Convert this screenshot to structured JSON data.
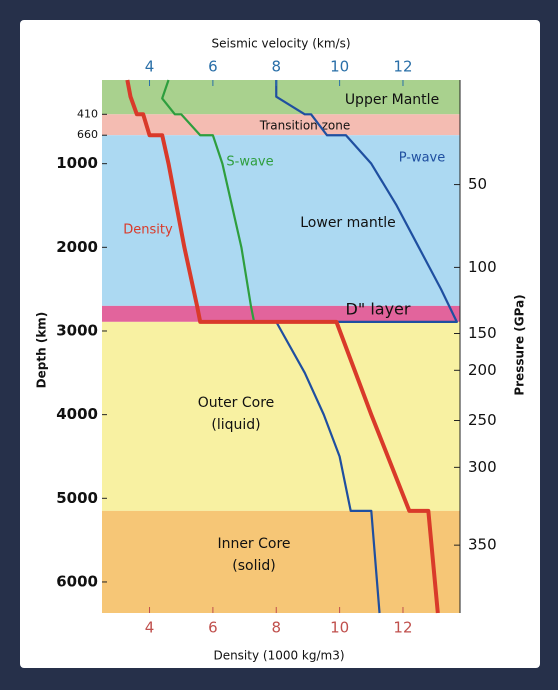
{
  "chart_data": {
    "type": "line",
    "x_label_top": "Seismic velocity (km/s)",
    "x_label_bottom": "Density (1000 kg/m3)",
    "y_label": "Depth (km)",
    "y2_label": "Pressure (GPa)",
    "xlim": [
      2.5,
      13.8
    ],
    "xticks": [
      4,
      6,
      8,
      10,
      12
    ],
    "x2ticks": [
      4,
      6,
      8,
      10,
      12
    ],
    "xtick_color_top": "#2a6fa8",
    "xtick_color_bottom": "#c0504d",
    "ylim": [
      0,
      6371
    ],
    "y_inverted": true,
    "yticks": [
      410,
      660,
      1000,
      2000,
      3000,
      4000,
      5000,
      6000
    ],
    "y2ticks": [
      {
        "value": 50,
        "depth": 1250
      },
      {
        "value": 100,
        "depth": 2240
      },
      {
        "value": 150,
        "depth": 3030
      },
      {
        "value": 200,
        "depth": 3470
      },
      {
        "value": 250,
        "depth": 4070
      },
      {
        "value": 300,
        "depth": 4630
      },
      {
        "value": 350,
        "depth": 5560
      }
    ],
    "layers": [
      {
        "name": [
          "Upper Mantle"
        ],
        "top": 0,
        "bottom": 410,
        "color": "#a9d18e"
      },
      {
        "name": [
          "Transition zone"
        ],
        "top": 410,
        "bottom": 660,
        "color": "#f4bcb2"
      },
      {
        "name": [
          "Lower mantle"
        ],
        "top": 660,
        "bottom": 2700,
        "color": "#acd9f2"
      },
      {
        "name": [
          "D\" layer"
        ],
        "top": 2700,
        "bottom": 2891,
        "color": "#e2649c"
      },
      {
        "name": [
          "Outer Core",
          "(liquid)"
        ],
        "top": 2891,
        "bottom": 5150,
        "color": "#f8f1a2"
      },
      {
        "name": [
          "Inner Core",
          "(solid)"
        ],
        "top": 5150,
        "bottom": 6371,
        "color": "#f6c676"
      }
    ],
    "series": [
      {
        "name": "P-wave",
        "color": "#1f4fa0",
        "axis": "x_top",
        "depth": [
          0,
          200,
          410,
          410,
          660,
          660,
          1000,
          1500,
          2000,
          2500,
          2891,
          2891,
          3500,
          4000,
          4500,
          5150,
          5150,
          6371
        ],
        "values": [
          8.0,
          8.0,
          8.9,
          9.1,
          9.6,
          10.2,
          11.0,
          11.8,
          12.5,
          13.2,
          13.7,
          8.0,
          8.9,
          9.5,
          10.0,
          10.35,
          11.0,
          11.26
        ]
      },
      {
        "name": "S-wave",
        "color": "#2e9e3e",
        "axis": "x_top",
        "depth": [
          0,
          220,
          410,
          410,
          660,
          660,
          1000,
          2000,
          2700,
          2891
        ],
        "values": [
          4.6,
          4.4,
          4.8,
          5.0,
          5.6,
          6.0,
          6.3,
          6.9,
          7.2,
          7.3
        ]
      },
      {
        "name": "Density",
        "color": "#d93a2a",
        "axis": "x_bottom",
        "depth": [
          0,
          200,
          410,
          410,
          660,
          660,
          1000,
          2000,
          2700,
          2891,
          2891,
          4000,
          5150,
          5150,
          6371
        ],
        "values": [
          3.3,
          3.4,
          3.6,
          3.8,
          4.0,
          4.4,
          4.6,
          5.1,
          5.5,
          5.6,
          9.9,
          11.0,
          12.2,
          12.8,
          13.1
        ]
      }
    ]
  }
}
